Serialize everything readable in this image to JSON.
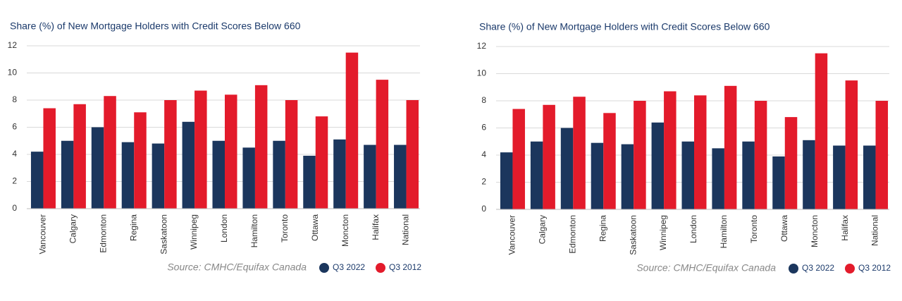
{
  "chart_data": [
    {
      "type": "bar",
      "title": "Share (%) of New Mortgage Holders with Credit Scores Below 660",
      "categories": [
        "Vancouver",
        "Calgary",
        "Edmonton",
        "Regina",
        "Saskatoon",
        "Winnipeg",
        "London",
        "Hamilton",
        "Toronto",
        "Ottawa",
        "Moncton",
        "Halifax",
        "National"
      ],
      "series": [
        {
          "name": "Q3 2022",
          "color": "#1b365d",
          "values": [
            4.2,
            5.0,
            6.0,
            4.9,
            4.8,
            6.4,
            5.0,
            4.5,
            5.0,
            3.9,
            5.1,
            4.7,
            4.7
          ]
        },
        {
          "name": "Q3 2012",
          "color": "#e31b2b",
          "values": [
            7.4,
            7.7,
            8.3,
            7.1,
            8.0,
            8.7,
            8.4,
            9.1,
            8.0,
            6.8,
            11.5,
            9.5,
            8.0
          ]
        }
      ],
      "ylim": [
        0,
        12
      ],
      "yticks": [
        0,
        2,
        4,
        6,
        8,
        10,
        12
      ],
      "grid": true,
      "source": "Source: CMHC/Equifax Canada"
    },
    {
      "type": "bar",
      "title": "Share (%) of New Mortgage Holders with Credit Scores Below 660",
      "categories": [
        "Vancouver",
        "Calgary",
        "Edmonton",
        "Regina",
        "Saskatoon",
        "Winnipeg",
        "London",
        "Hamilton",
        "Toronto",
        "Ottawa",
        "Moncton",
        "Halifax",
        "National"
      ],
      "series": [
        {
          "name": "Q3 2022",
          "color": "#1b365d",
          "values": [
            4.2,
            5.0,
            6.0,
            4.9,
            4.8,
            6.4,
            5.0,
            4.5,
            5.0,
            3.9,
            5.1,
            4.7,
            4.7
          ]
        },
        {
          "name": "Q3 2012",
          "color": "#e31b2b",
          "values": [
            7.4,
            7.7,
            8.3,
            7.1,
            8.0,
            8.7,
            8.4,
            9.1,
            8.0,
            6.8,
            11.5,
            9.5,
            8.0
          ]
        }
      ],
      "ylim": [
        0,
        12
      ],
      "yticks": [
        0,
        2,
        4,
        6,
        8,
        10,
        12
      ],
      "grid": true,
      "source": "Source: CMHC/Equifax Canada"
    }
  ]
}
